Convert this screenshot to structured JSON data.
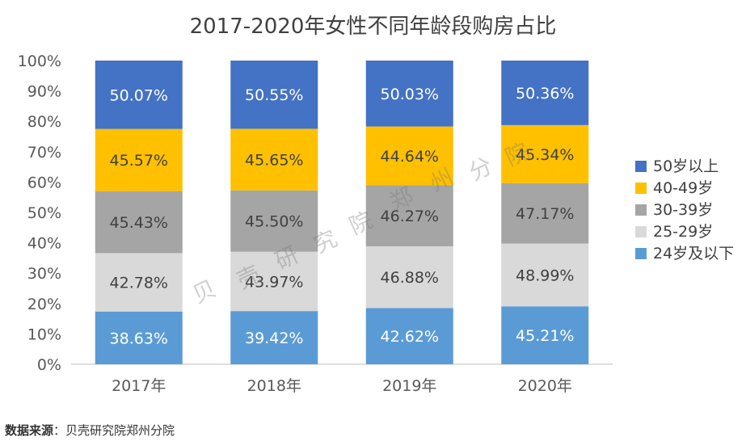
{
  "chart_data": {
    "type": "bar",
    "stacked": true,
    "normalized": true,
    "title": "2017-2020年女性不同年龄段购房占比",
    "xlabel": "",
    "ylabel": "",
    "ylim": [
      0,
      100
    ],
    "y_ticks": [
      "0%",
      "10%",
      "20%",
      "30%",
      "40%",
      "50%",
      "60%",
      "70%",
      "80%",
      "90%",
      "100%"
    ],
    "categories": [
      "2017年",
      "2018年",
      "2019年",
      "2020年"
    ],
    "grid": false,
    "legend_position": "right",
    "series": [
      {
        "name": "24岁及以下",
        "color": "#5B9BD5",
        "labels": [
          "38.63%",
          "39.42%",
          "42.62%",
          "45.21%"
        ],
        "values": [
          38.63,
          39.42,
          42.62,
          45.21
        ]
      },
      {
        "name": "25-29岁",
        "color": "#D9D9D9",
        "labels": [
          "42.78%",
          "43.97%",
          "46.88%",
          "48.99%"
        ],
        "values": [
          42.78,
          43.97,
          46.88,
          48.99
        ]
      },
      {
        "name": "30-39岁",
        "color": "#A5A5A5",
        "labels": [
          "45.43%",
          "45.50%",
          "46.27%",
          "47.17%"
        ],
        "values": [
          45.43,
          45.5,
          46.27,
          47.17
        ]
      },
      {
        "name": "40-49岁",
        "color": "#FFC000",
        "labels": [
          "45.57%",
          "45.65%",
          "44.64%",
          "45.34%"
        ],
        "values": [
          45.57,
          45.65,
          44.64,
          45.34
        ]
      },
      {
        "name": "50岁以上",
        "color": "#4472C4",
        "labels": [
          "50.07%",
          "50.55%",
          "50.03%",
          "50.36%"
        ],
        "values": [
          50.07,
          50.55,
          50.03,
          50.36
        ]
      }
    ],
    "legend_order": [
      "50岁以上",
      "40-49岁",
      "30-39岁",
      "25-29岁",
      "24岁及以下"
    ]
  },
  "source": {
    "label": "数据来源",
    "separator": "：",
    "text": "贝壳研究院郑州分院"
  },
  "watermark": [
    "贝",
    "壳",
    "研",
    "究",
    "院",
    "郑",
    "州",
    "分",
    "院"
  ]
}
